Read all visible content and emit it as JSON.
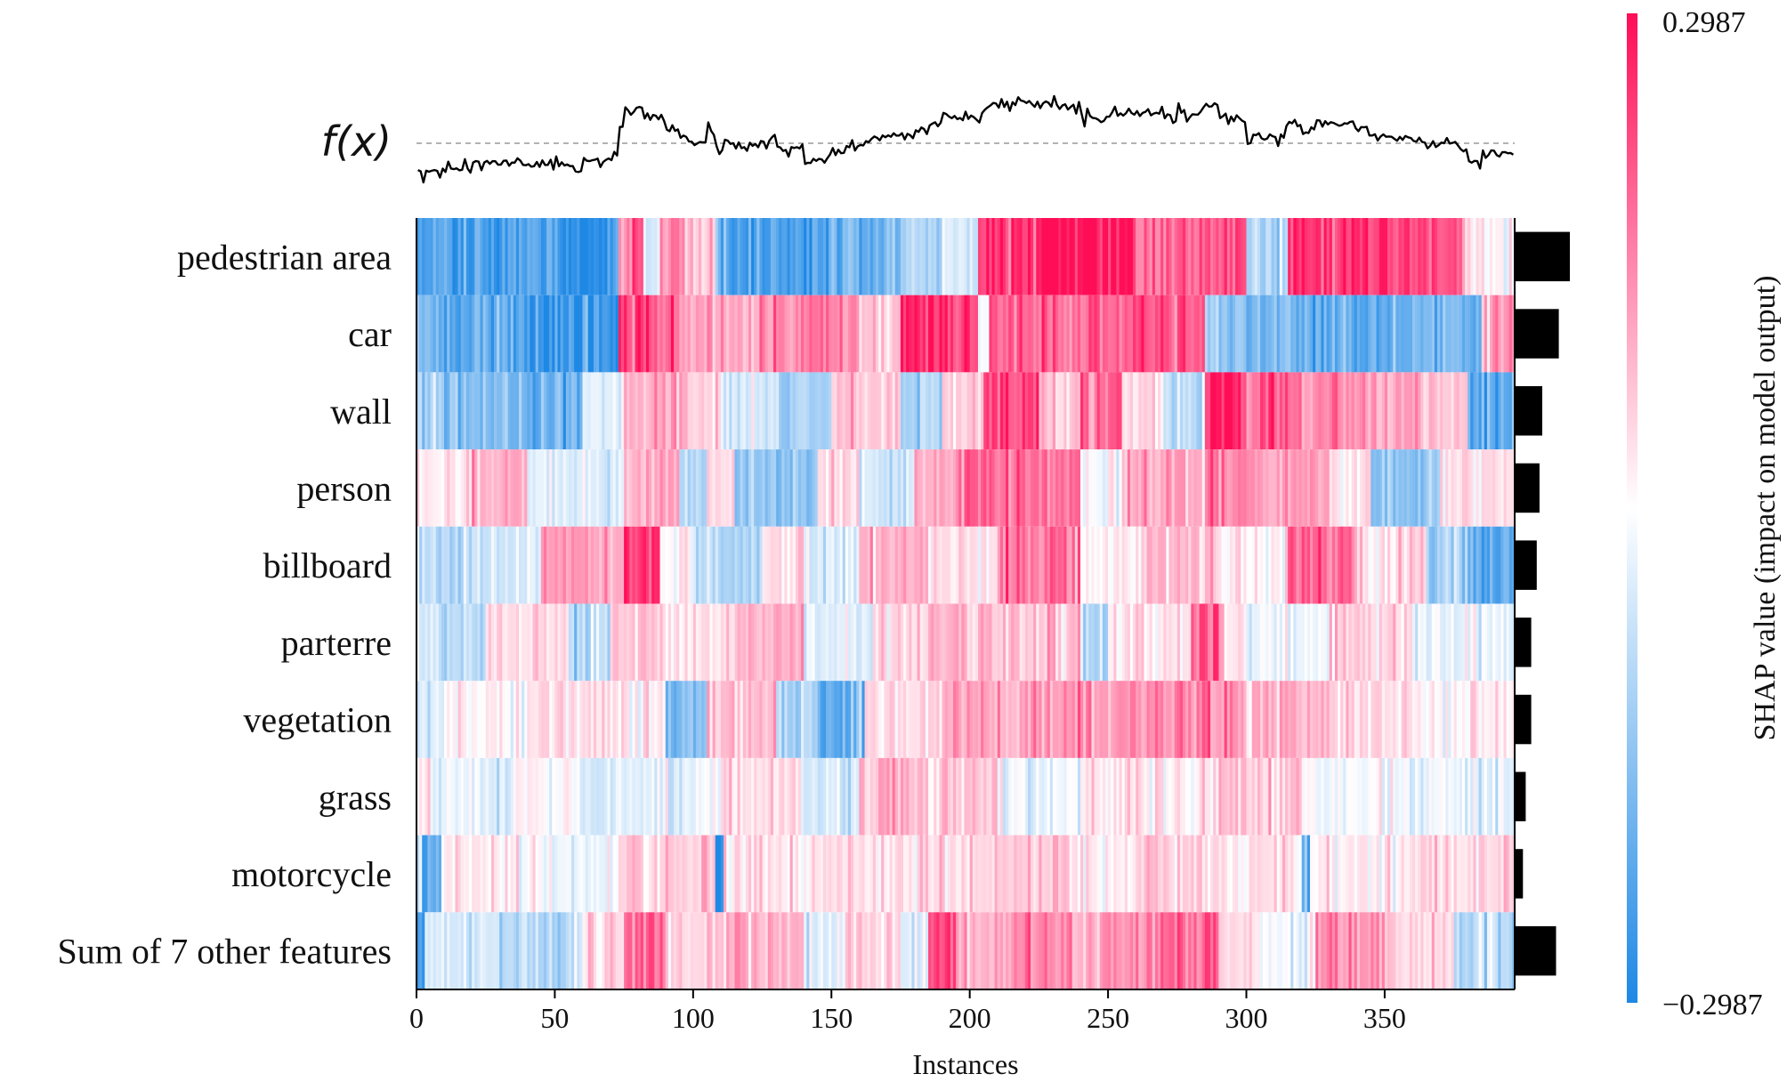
{
  "chart_data": {
    "type": "heatmap",
    "title": "",
    "fx_label": "f(x)",
    "xlabel": "Instances",
    "colorbar_label": "SHAP value (impact on model output)",
    "colorbar_max_label": "0.2987",
    "colorbar_min_label": "−0.2987",
    "color_range": [
      -0.2987,
      0.2987
    ],
    "color_low": "#1e88e5",
    "color_mid": "#ffffff",
    "color_high": "#ff0d57",
    "n_instances": 397,
    "x_ticks": [
      0,
      50,
      100,
      150,
      200,
      250,
      300,
      350
    ],
    "x_tick_labels": [
      "0",
      "50",
      "100",
      "150",
      "200",
      "250",
      "300",
      "350"
    ],
    "features": [
      {
        "name": "pedestrian area",
        "importance": 0.1,
        "segments": [
          [
            0,
            8,
            -0.22
          ],
          [
            8,
            30,
            -0.26
          ],
          [
            30,
            55,
            -0.24
          ],
          [
            55,
            73,
            -0.27
          ],
          [
            73,
            78,
            0.12
          ],
          [
            78,
            82,
            0.25
          ],
          [
            82,
            88,
            -0.05
          ],
          [
            88,
            95,
            0.15
          ],
          [
            95,
            108,
            0.08
          ],
          [
            108,
            112,
            -0.18
          ],
          [
            112,
            150,
            -0.25
          ],
          [
            150,
            175,
            -0.2
          ],
          [
            175,
            190,
            -0.1
          ],
          [
            190,
            203,
            -0.05
          ],
          [
            203,
            260,
            0.29
          ],
          [
            260,
            285,
            0.2
          ],
          [
            285,
            300,
            0.22
          ],
          [
            300,
            315,
            -0.1
          ],
          [
            315,
            345,
            0.25
          ],
          [
            345,
            378,
            0.24
          ],
          [
            378,
            386,
            0.05
          ],
          [
            386,
            397,
            0.01
          ]
        ]
      },
      {
        "name": "car",
        "importance": 0.08,
        "segments": [
          [
            0,
            10,
            -0.18
          ],
          [
            10,
            35,
            -0.22
          ],
          [
            35,
            73,
            -0.26
          ],
          [
            73,
            95,
            0.25
          ],
          [
            95,
            120,
            0.12
          ],
          [
            120,
            160,
            0.15
          ],
          [
            160,
            175,
            0.05
          ],
          [
            175,
            203,
            0.27
          ],
          [
            203,
            207,
            -0.02
          ],
          [
            207,
            232,
            0.23
          ],
          [
            232,
            260,
            0.2
          ],
          [
            260,
            285,
            0.23
          ],
          [
            285,
            300,
            -0.15
          ],
          [
            300,
            320,
            -0.18
          ],
          [
            320,
            360,
            -0.22
          ],
          [
            360,
            385,
            -0.18
          ],
          [
            385,
            397,
            0.12
          ]
        ]
      },
      {
        "name": "wall",
        "importance": 0.05,
        "segments": [
          [
            0,
            10,
            -0.12
          ],
          [
            10,
            40,
            -0.18
          ],
          [
            40,
            60,
            -0.2
          ],
          [
            60,
            75,
            -0.02
          ],
          [
            75,
            98,
            0.1
          ],
          [
            98,
            110,
            0.05
          ],
          [
            110,
            130,
            -0.05
          ],
          [
            130,
            150,
            -0.12
          ],
          [
            150,
            175,
            0.08
          ],
          [
            175,
            190,
            -0.12
          ],
          [
            190,
            205,
            0.05
          ],
          [
            205,
            225,
            0.22
          ],
          [
            225,
            240,
            0.08
          ],
          [
            240,
            255,
            0.2
          ],
          [
            255,
            270,
            0.05
          ],
          [
            270,
            285,
            -0.1
          ],
          [
            285,
            300,
            0.28
          ],
          [
            300,
            320,
            0.2
          ],
          [
            320,
            345,
            0.15
          ],
          [
            345,
            365,
            0.12
          ],
          [
            365,
            380,
            0.08
          ],
          [
            380,
            397,
            -0.2
          ]
        ]
      },
      {
        "name": "person",
        "importance": 0.045,
        "segments": [
          [
            0,
            20,
            0.02
          ],
          [
            20,
            40,
            0.12
          ],
          [
            40,
            75,
            -0.05
          ],
          [
            75,
            95,
            0.1
          ],
          [
            95,
            105,
            -0.1
          ],
          [
            105,
            115,
            0.05
          ],
          [
            115,
            145,
            -0.14
          ],
          [
            145,
            160,
            0.05
          ],
          [
            160,
            180,
            -0.05
          ],
          [
            180,
            195,
            0.12
          ],
          [
            195,
            210,
            0.2
          ],
          [
            210,
            240,
            0.17
          ],
          [
            240,
            255,
            -0.02
          ],
          [
            255,
            285,
            0.1
          ],
          [
            285,
            305,
            0.18
          ],
          [
            305,
            330,
            0.12
          ],
          [
            330,
            345,
            0.05
          ],
          [
            345,
            370,
            -0.15
          ],
          [
            370,
            397,
            0.05
          ]
        ]
      },
      {
        "name": "billboard",
        "importance": 0.04,
        "segments": [
          [
            0,
            20,
            -0.1
          ],
          [
            20,
            45,
            -0.06
          ],
          [
            45,
            75,
            0.12
          ],
          [
            75,
            88,
            0.27
          ],
          [
            88,
            100,
            0.02
          ],
          [
            100,
            125,
            -0.1
          ],
          [
            125,
            140,
            0.05
          ],
          [
            140,
            160,
            -0.05
          ],
          [
            160,
            185,
            0.1
          ],
          [
            185,
            210,
            0.05
          ],
          [
            210,
            240,
            0.18
          ],
          [
            240,
            260,
            0.02
          ],
          [
            260,
            290,
            0.08
          ],
          [
            290,
            315,
            0.02
          ],
          [
            315,
            340,
            0.2
          ],
          [
            340,
            365,
            0.05
          ],
          [
            365,
            380,
            -0.12
          ],
          [
            380,
            397,
            -0.22
          ]
        ]
      },
      {
        "name": "parterre",
        "importance": 0.03,
        "segments": [
          [
            0,
            8,
            -0.05
          ],
          [
            8,
            25,
            -0.1
          ],
          [
            25,
            55,
            0.05
          ],
          [
            55,
            70,
            -0.1
          ],
          [
            70,
            90,
            0.08
          ],
          [
            90,
            115,
            0.03
          ],
          [
            115,
            140,
            0.1
          ],
          [
            140,
            165,
            -0.04
          ],
          [
            165,
            185,
            0.04
          ],
          [
            185,
            210,
            0.1
          ],
          [
            210,
            240,
            0.08
          ],
          [
            240,
            250,
            -0.12
          ],
          [
            250,
            280,
            0.05
          ],
          [
            280,
            292,
            0.2
          ],
          [
            292,
            300,
            0.03
          ],
          [
            300,
            330,
            -0.02
          ],
          [
            330,
            360,
            0.06
          ],
          [
            360,
            397,
            -0.03
          ]
        ]
      },
      {
        "name": "vegetation",
        "importance": 0.03,
        "segments": [
          [
            0,
            10,
            -0.05
          ],
          [
            10,
            40,
            0.01
          ],
          [
            40,
            65,
            0.05
          ],
          [
            65,
            90,
            0.03
          ],
          [
            90,
            105,
            -0.18
          ],
          [
            105,
            130,
            0.08
          ],
          [
            130,
            145,
            -0.1
          ],
          [
            145,
            162,
            -0.2
          ],
          [
            162,
            190,
            0.05
          ],
          [
            190,
            220,
            0.1
          ],
          [
            220,
            260,
            0.13
          ],
          [
            260,
            300,
            0.15
          ],
          [
            300,
            330,
            0.1
          ],
          [
            330,
            360,
            0.05
          ],
          [
            360,
            397,
            0.02
          ]
        ]
      },
      {
        "name": "grass",
        "importance": 0.02,
        "segments": [
          [
            0,
            5,
            0.03
          ],
          [
            5,
            35,
            -0.05
          ],
          [
            35,
            60,
            0.01
          ],
          [
            60,
            90,
            -0.05
          ],
          [
            90,
            110,
            -0.02
          ],
          [
            110,
            140,
            0.05
          ],
          [
            140,
            160,
            -0.05
          ],
          [
            160,
            185,
            0.1
          ],
          [
            185,
            210,
            0.07
          ],
          [
            210,
            240,
            -0.02
          ],
          [
            240,
            260,
            0.04
          ],
          [
            260,
            290,
            0.03
          ],
          [
            290,
            320,
            0.08
          ],
          [
            320,
            360,
            -0.01
          ],
          [
            360,
            397,
            -0.03
          ]
        ]
      },
      {
        "name": "motorcycle",
        "importance": 0.015,
        "segments": [
          [
            0,
            2,
            -0.06
          ],
          [
            2,
            9,
            -0.22
          ],
          [
            9,
            45,
            0.01
          ],
          [
            45,
            60,
            -0.03
          ],
          [
            60,
            72,
            -0.02
          ],
          [
            72,
            108,
            0.06
          ],
          [
            108,
            111,
            -0.26
          ],
          [
            111,
            140,
            0.05
          ],
          [
            140,
            200,
            0.04
          ],
          [
            200,
            240,
            0.06
          ],
          [
            240,
            260,
            0.02
          ],
          [
            260,
            290,
            0.07
          ],
          [
            290,
            320,
            0.03
          ],
          [
            320,
            323,
            -0.22
          ],
          [
            323,
            360,
            0.02
          ],
          [
            360,
            397,
            0.05
          ]
        ]
      },
      {
        "name": "Sum of 7 other features",
        "importance": 0.075,
        "segments": [
          [
            0,
            3,
            -0.25
          ],
          [
            3,
            30,
            -0.05
          ],
          [
            30,
            60,
            -0.1
          ],
          [
            60,
            75,
            0.05
          ],
          [
            75,
            90,
            0.18
          ],
          [
            90,
            110,
            0.06
          ],
          [
            110,
            140,
            0.1
          ],
          [
            140,
            155,
            -0.05
          ],
          [
            155,
            175,
            0.06
          ],
          [
            175,
            185,
            -0.05
          ],
          [
            185,
            195,
            0.25
          ],
          [
            195,
            215,
            0.1
          ],
          [
            215,
            240,
            0.15
          ],
          [
            240,
            265,
            0.13
          ],
          [
            265,
            290,
            0.2
          ],
          [
            290,
            305,
            0.05
          ],
          [
            305,
            325,
            -0.02
          ],
          [
            325,
            350,
            0.14
          ],
          [
            350,
            375,
            0.05
          ],
          [
            375,
            397,
            -0.1
          ]
        ]
      }
    ]
  }
}
